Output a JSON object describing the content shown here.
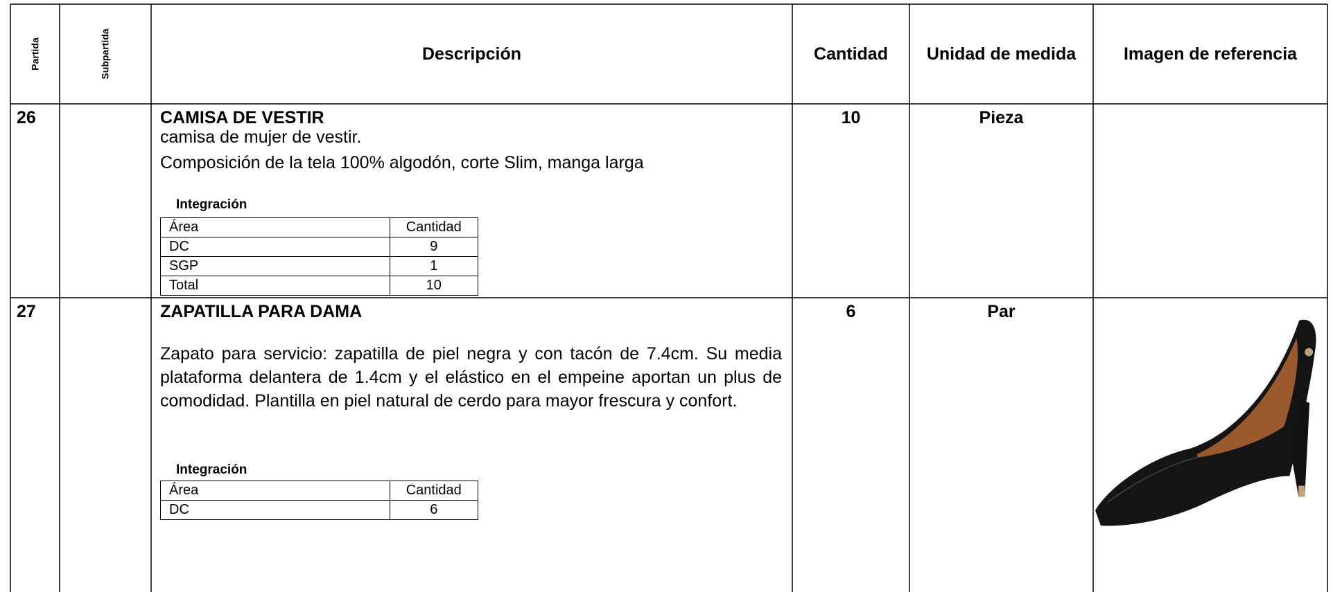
{
  "table": {
    "headers": [
      "Partida",
      "Subpartida",
      "Descripción",
      "Cantidad",
      "Unidad de medida",
      "Imagen de referencia"
    ],
    "rows": [
      {
        "partida": "26",
        "title": "CAMISA DE VESTIR",
        "description": [
          "camisa de mujer de vestir.",
          "Composición de la tela 100% algodón, corte Slim, manga larga"
        ],
        "integration": {
          "title": "Integración",
          "headers": [
            "Área",
            "Cantidad"
          ],
          "rows": [
            [
              "DC",
              "9"
            ],
            [
              "SGP",
              "1"
            ],
            [
              "Total",
              "10"
            ]
          ]
        },
        "cantidad": "10",
        "unidad": "Pieza"
      },
      {
        "partida": "27",
        "title": "ZAPATILLA PARA DAMA",
        "description": [
          "Zapato para servicio: zapatilla de piel negra y con tacón de 7.4cm. Su media plataforma delantera de 1.4cm y el elástico en el empeine aportan un plus de comodidad. Plantilla en piel natural de cerdo para mayor frescura y confort."
        ],
        "integration": {
          "title": "Integración",
          "headers": [
            "Área",
            "Cantidad"
          ],
          "rows": [
            [
              "DC",
              "6"
            ]
          ]
        },
        "cantidad": "6",
        "unidad": "Par"
      }
    ]
  }
}
